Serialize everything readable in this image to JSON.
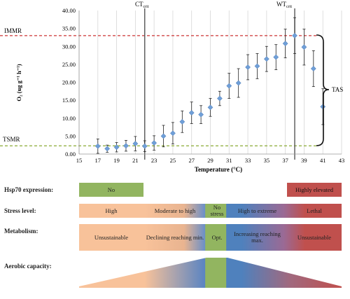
{
  "chart_data": {
    "type": "scatter",
    "title": "",
    "xlabel": "Temperature (°C)",
    "ylabel": "O₂ (ug g⁻¹ h⁻¹)",
    "xlim": [
      15,
      43
    ],
    "ylim": [
      0,
      40
    ],
    "x_ticks": [
      "15",
      "17",
      "19",
      "21",
      "23",
      "25",
      "27",
      "29",
      "31",
      "33",
      "35",
      "37",
      "39",
      "41",
      "43"
    ],
    "y_ticks": [
      "0.00",
      "5.00",
      "10.00",
      "15.00",
      "20.00",
      "25.00",
      "30.00",
      "35.00",
      "40.00"
    ],
    "grid": "vertical",
    "points": [
      {
        "x": 17,
        "y": 2.2,
        "err": 2.0
      },
      {
        "x": 18,
        "y": 1.5,
        "err": 1.0
      },
      {
        "x": 19,
        "y": 1.9,
        "err": 1.3
      },
      {
        "x": 20,
        "y": 2.3,
        "err": 1.5
      },
      {
        "x": 21,
        "y": 2.9,
        "err": 2.0
      },
      {
        "x": 22,
        "y": 2.2,
        "err": 1.5
      },
      {
        "x": 23,
        "y": 3.1,
        "err": 2.0
      },
      {
        "x": 24,
        "y": 5.0,
        "err": 3.0
      },
      {
        "x": 25,
        "y": 5.8,
        "err": 3.0
      },
      {
        "x": 26,
        "y": 9.0,
        "err": 3.0
      },
      {
        "x": 27,
        "y": 11.5,
        "err": 3.0
      },
      {
        "x": 28,
        "y": 11.0,
        "err": 2.5
      },
      {
        "x": 29,
        "y": 13.0,
        "err": 2.5
      },
      {
        "x": 30,
        "y": 15.5,
        "err": 2.0
      },
      {
        "x": 31,
        "y": 19.0,
        "err": 3.5
      },
      {
        "x": 32,
        "y": 19.8,
        "err": 4.0
      },
      {
        "x": 33,
        "y": 24.2,
        "err": 3.5
      },
      {
        "x": 34,
        "y": 24.5,
        "err": 3.5
      },
      {
        "x": 35,
        "y": 26.5,
        "err": 3.5
      },
      {
        "x": 36,
        "y": 27.0,
        "err": 3.5
      },
      {
        "x": 37,
        "y": 30.8,
        "err": 4.0
      },
      {
        "x": 38,
        "y": 33.0,
        "err": 5.0
      },
      {
        "x": 39,
        "y": 29.8,
        "err": 5.0
      },
      {
        "x": 40,
        "y": 23.8,
        "err": 5.0
      },
      {
        "x": 41,
        "y": 13.2,
        "err": 5.0
      }
    ],
    "reference_lines": {
      "IMMR": {
        "label": "IMMR",
        "y": 33.0,
        "color": "#cc3333"
      },
      "TSMR": {
        "label": "TSMR",
        "y": 2.3,
        "color": "#8aaa33"
      }
    },
    "critical_temps": {
      "CT": {
        "label": "CT",
        "sub": "crit",
        "x": 22
      },
      "WT": {
        "label": "WT",
        "sub": "crit",
        "x": 38
      }
    },
    "tas_label": "TAS"
  },
  "rows": {
    "hsp": {
      "label": "Hsp70 expression:",
      "low": "No",
      "high": "Highly elevated"
    },
    "stress": {
      "label": "Stress level:",
      "high_s": "High",
      "moderate": "Moderate to high",
      "no": "No stress",
      "extreme": "High to extreme",
      "lethal": "Lethal"
    },
    "metabolism": {
      "label": "Metabolism:",
      "unsustainable_left": "Unsustainable",
      "declining": "Declining reaching min.",
      "opt": "Opt.",
      "increasing": "Increasing reaching max.",
      "unsustainable_right": "Unsustainable"
    },
    "aerobic": {
      "label": "Aerobic capacity:"
    }
  },
  "colors": {
    "green": "#92b560",
    "red": "#c0504d",
    "orange": "#f8c29a",
    "blue": "#4f81bd",
    "marker": "#6f9fd8"
  }
}
